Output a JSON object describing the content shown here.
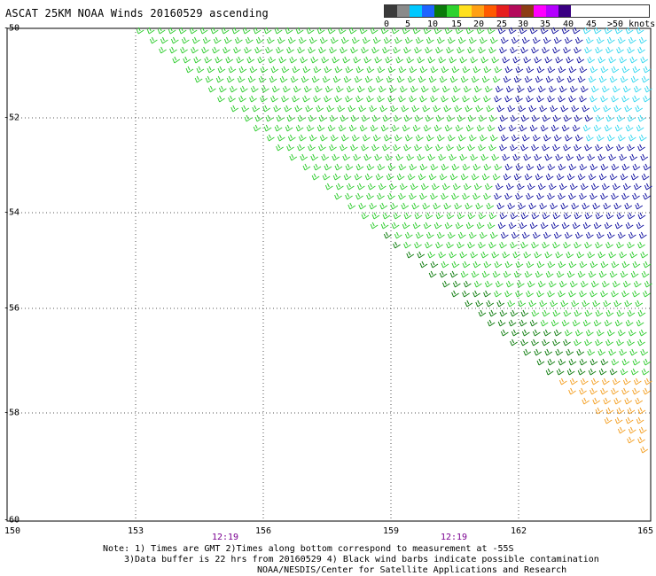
{
  "title": "ASCAT 25KM NOAA Winds 20160529 ascending",
  "legend": {
    "colors": [
      "#3a3a3a",
      "#8a8a8a",
      "#00c8ff",
      "#1e64ff",
      "#0a7a0a",
      "#2ed22e",
      "#ffe01e",
      "#ffa014",
      "#ff5a00",
      "#e61e1e",
      "#b40a5a",
      "#8c3c14",
      "#ff00ff",
      "#b400ff",
      "#3a0082"
    ],
    "labels": [
      "0",
      "5",
      "10",
      "15",
      "20",
      "25",
      "30",
      "35",
      "40",
      "45",
      ">50 knots"
    ]
  },
  "axes": {
    "lat_labels": [
      "-50",
      "-52",
      "-54",
      "-56",
      "-58",
      "-60"
    ],
    "lon_labels": [
      "150",
      "153",
      "156",
      "159",
      "162",
      "165"
    ],
    "times": [
      "12:19",
      "12:19"
    ]
  },
  "notes": {
    "line1": "Note: 1) Times are GMT 2)Times along bottom correspond to measurement at -55S",
    "line2": "3)Data buffer is 22 hrs from 20160529 4) Black wind barbs indicate possible contamination",
    "line3": "NOAA/NESDIS/Center for Satellite Applications and Research"
  }
}
